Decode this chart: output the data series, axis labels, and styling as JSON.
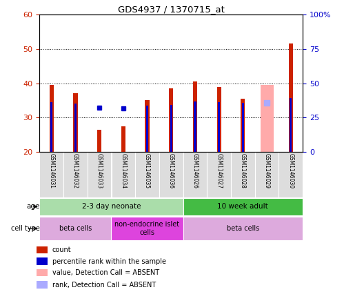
{
  "title": "GDS4937 / 1370715_at",
  "samples": [
    "GSM1146031",
    "GSM1146032",
    "GSM1146033",
    "GSM1146034",
    "GSM1146035",
    "GSM1146036",
    "GSM1146026",
    "GSM1146027",
    "GSM1146028",
    "GSM1146029",
    "GSM1146030"
  ],
  "count_values": [
    39.5,
    37.0,
    26.5,
    27.5,
    35.0,
    38.5,
    40.5,
    39.0,
    35.5,
    39.5,
    51.5
  ],
  "rank_values": [
    36.0,
    35.0,
    null,
    null,
    33.5,
    34.0,
    36.5,
    36.0,
    35.5,
    null,
    39.0
  ],
  "absent_count": [
    null,
    null,
    null,
    null,
    null,
    null,
    null,
    null,
    null,
    39.5,
    null
  ],
  "absent_rank": [
    null,
    null,
    null,
    null,
    null,
    null,
    null,
    null,
    null,
    35.5,
    null
  ],
  "floating_rank": [
    null,
    null,
    32.0,
    31.5,
    null,
    null,
    null,
    null,
    null,
    null,
    null
  ],
  "ylim_left": [
    20,
    60
  ],
  "yticks_left": [
    20,
    30,
    40,
    50,
    60
  ],
  "yticks_right": [
    0,
    25,
    50,
    75,
    100
  ],
  "count_color": "#cc2200",
  "rank_color": "#0000cc",
  "absent_count_color": "#ffaaaa",
  "absent_rank_color": "#aaaaff",
  "bar_bottom": 20,
  "age_groups": [
    {
      "label": "2-3 day neonate",
      "start": 0,
      "end": 6,
      "color": "#aaddaa"
    },
    {
      "label": "10 week adult",
      "start": 6,
      "end": 11,
      "color": "#44bb44"
    }
  ],
  "cell_groups": [
    {
      "label": "beta cells",
      "start": 0,
      "end": 3,
      "color": "#ddaadd"
    },
    {
      "label": "non-endocrine islet\ncells",
      "start": 3,
      "end": 6,
      "color": "#dd44dd"
    },
    {
      "label": "beta cells",
      "start": 6,
      "end": 11,
      "color": "#ddaadd"
    }
  ],
  "legend_items": [
    {
      "label": "count",
      "color": "#cc2200"
    },
    {
      "label": "percentile rank within the sample",
      "color": "#0000cc"
    },
    {
      "label": "value, Detection Call = ABSENT",
      "color": "#ffaaaa"
    },
    {
      "label": "rank, Detection Call = ABSENT",
      "color": "#aaaaff"
    }
  ]
}
